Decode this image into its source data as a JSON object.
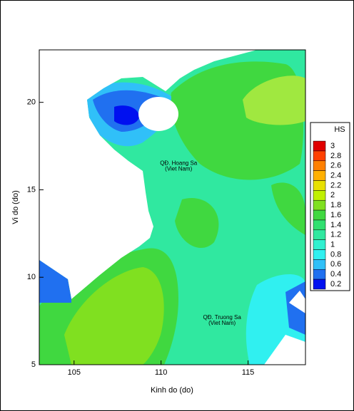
{
  "map": {
    "x_axis": {
      "label": "Kinh do (do)",
      "lim": [
        103,
        118.3
      ],
      "ticks": [
        105,
        110,
        115
      ]
    },
    "y_axis": {
      "label": "Vi do (do)",
      "lim": [
        5,
        23
      ],
      "ticks": [
        5,
        10,
        15,
        20
      ]
    },
    "colorbar": {
      "title": "HS",
      "levels": [
        3,
        2.8,
        2.6,
        2.4,
        2.2,
        2,
        1.8,
        1.6,
        1.4,
        1.2,
        1,
        0.8,
        0.6,
        0.4,
        0.2
      ],
      "colors": [
        "#e00000",
        "#ff4000",
        "#ff8000",
        "#ffb000",
        "#e8e000",
        "#c0f000",
        "#80e020",
        "#40d840",
        "#30e070",
        "#30e8a0",
        "#30f0d0",
        "#30f0f0",
        "#30c0f8",
        "#2070f0",
        "#0010f0"
      ]
    },
    "annotations": [
      {
        "text": "QĐ. Hoang Sa",
        "sub": "(Viet Nam)",
        "lon": 111.5,
        "lat": 16.5
      },
      {
        "text": "QĐ. Truong Sa",
        "sub": "(Viet Nam)",
        "lon": 114,
        "lat": 7.7
      }
    ]
  }
}
